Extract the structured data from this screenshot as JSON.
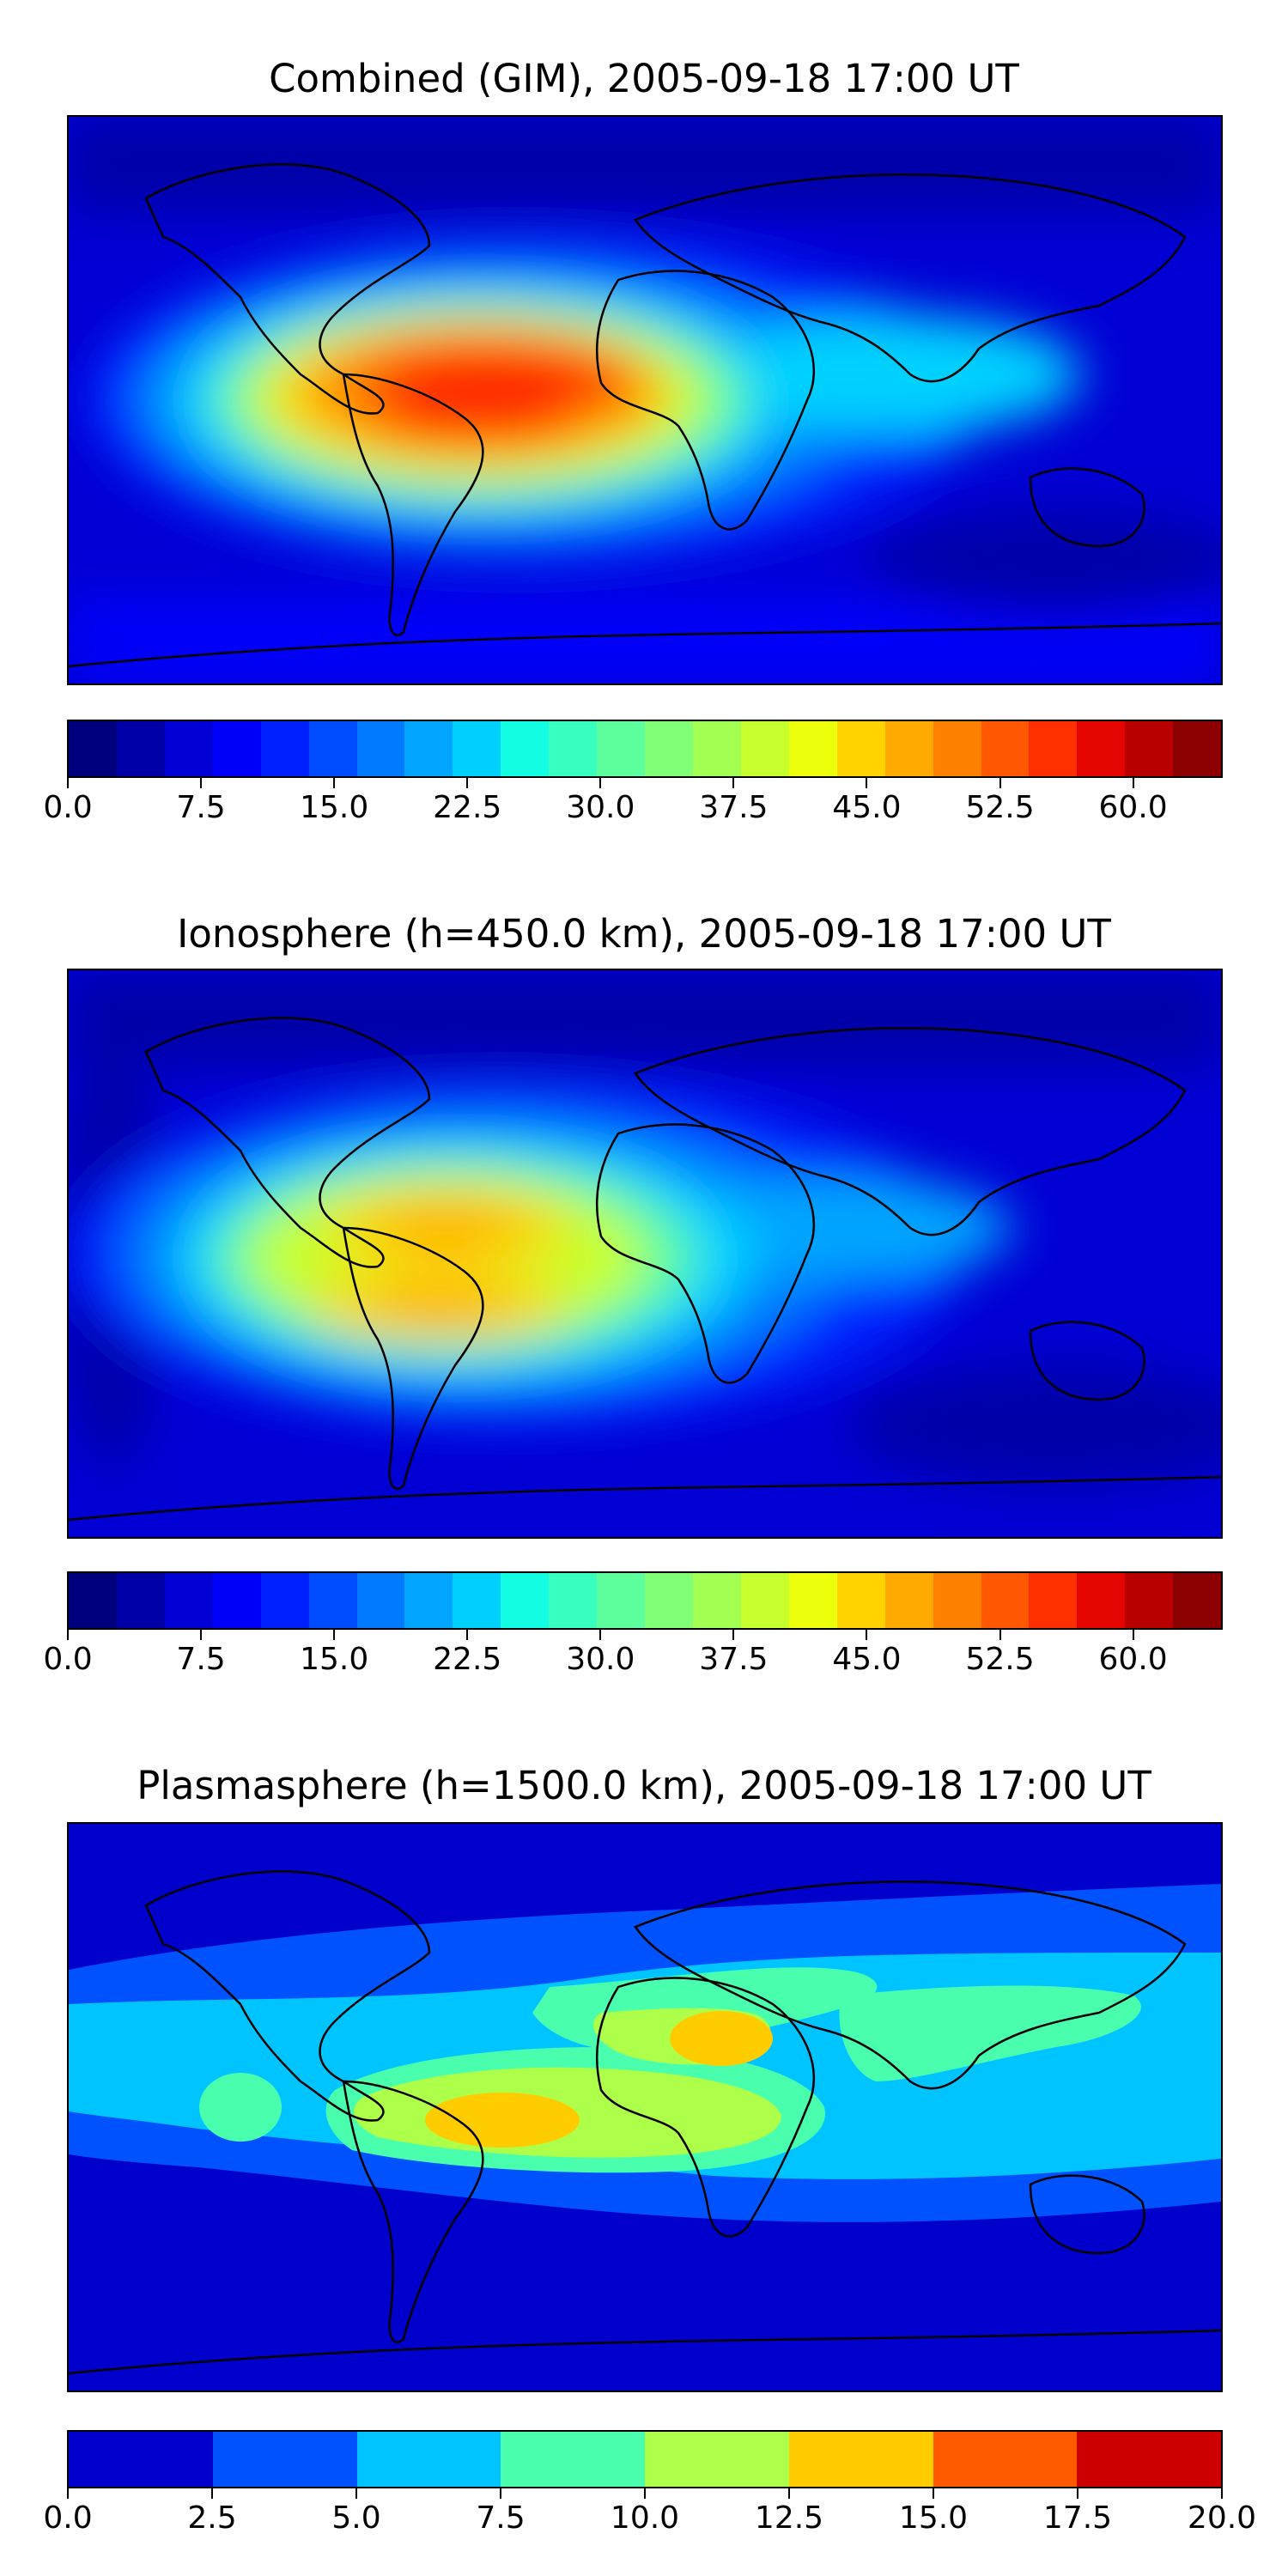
{
  "panels": [
    {
      "title": "Combined (GIM), 2005-09-18 17:00 UT",
      "colorbar": {
        "range": [
          0,
          65
        ],
        "ticks": [
          "0.0",
          "7.5",
          "15.0",
          "22.5",
          "30.0",
          "37.5",
          "45.0",
          "52.5",
          "60.0"
        ],
        "colors": [
          "#00007f",
          "#0000a8",
          "#0000d4",
          "#0000fa",
          "#0021ff",
          "#004dff",
          "#0079ff",
          "#00a5ff",
          "#00d1ff",
          "#13fde3",
          "#37ffbf",
          "#5cff9b",
          "#80ff77",
          "#a4ff53",
          "#c8ff2f",
          "#ecff0b",
          "#ffd300",
          "#ffaa00",
          "#ff8100",
          "#ff5800",
          "#ff2f00",
          "#e40500",
          "#b80000",
          "#8c0000"
        ]
      }
    },
    {
      "title": "Ionosphere  (h=450.0 km), 2005-09-18 17:00 UT",
      "colorbar": {
        "range": [
          0,
          65
        ],
        "ticks": [
          "0.0",
          "7.5",
          "15.0",
          "22.5",
          "30.0",
          "37.5",
          "45.0",
          "52.5",
          "60.0"
        ],
        "colors": [
          "#00007f",
          "#0000a8",
          "#0000d4",
          "#0000fa",
          "#0021ff",
          "#004dff",
          "#0079ff",
          "#00a5ff",
          "#00d1ff",
          "#13fde3",
          "#37ffbf",
          "#5cff9b",
          "#80ff77",
          "#a4ff53",
          "#c8ff2f",
          "#ecff0b",
          "#ffd300",
          "#ffaa00",
          "#ff8100",
          "#ff5800",
          "#ff2f00",
          "#e40500",
          "#b80000",
          "#8c0000"
        ]
      }
    },
    {
      "title": "Plasmasphere (h=1500.0 km), 2005-09-18 17:00 UT",
      "colorbar": {
        "range": [
          0,
          20
        ],
        "ticks": [
          "0.0",
          "2.5",
          "5.0",
          "7.5",
          "10.0",
          "12.5",
          "15.0",
          "17.5",
          "20.0"
        ],
        "colors": [
          "#0000cd",
          "#0052ff",
          "#00c4ff",
          "#49ffad",
          "#adff49",
          "#ffcc00",
          "#ff5a00",
          "#cd0000"
        ]
      }
    }
  ]
}
